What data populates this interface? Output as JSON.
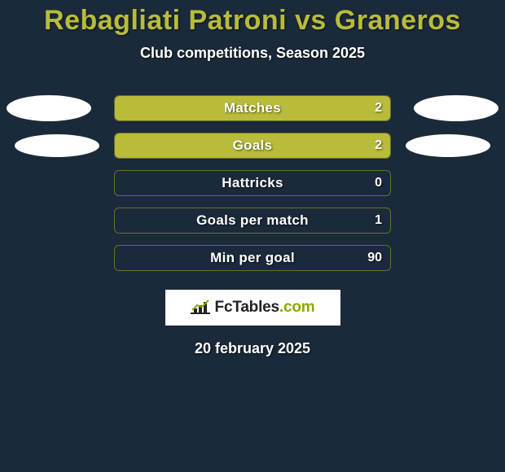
{
  "header": {
    "title": "Rebagliati Patroni vs Graneros",
    "subtitle": "Club competitions, Season 2025"
  },
  "theme": {
    "background": "#1a2a3a",
    "accent": "#b9bc3a",
    "bar_border": "#6b6d2a",
    "text": "#ffffff",
    "ellipse": "#ffffff"
  },
  "stats": [
    {
      "label": "Matches",
      "value": "2",
      "fill_pct": 100,
      "left_ellipse": true,
      "right_ellipse": true
    },
    {
      "label": "Goals",
      "value": "2",
      "fill_pct": 100,
      "left_ellipse": true,
      "right_ellipse": true,
      "ellipse_small": true
    },
    {
      "label": "Hattricks",
      "value": "0",
      "fill_pct": 0,
      "left_ellipse": false,
      "right_ellipse": false
    },
    {
      "label": "Goals per match",
      "value": "1",
      "fill_pct": 0,
      "left_ellipse": false,
      "right_ellipse": false
    },
    {
      "label": "Min per goal",
      "value": "90",
      "fill_pct": 0,
      "left_ellipse": false,
      "right_ellipse": false
    }
  ],
  "logo": {
    "brand": "FcTables",
    "suffix": ".com"
  },
  "footer": {
    "date": "20 february 2025"
  }
}
